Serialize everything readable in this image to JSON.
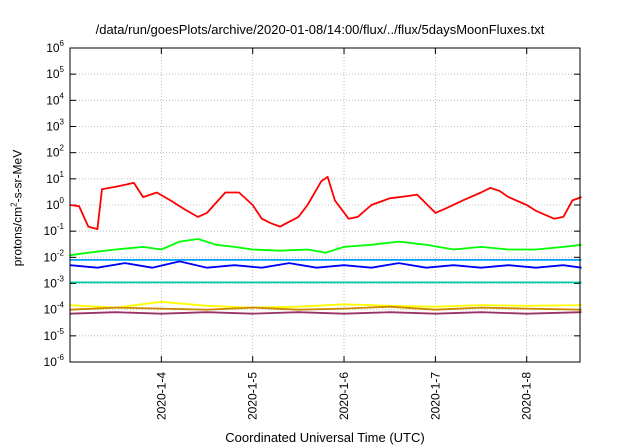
{
  "chart_data": {
    "type": "line",
    "title": "/data/run/goesPlots/archive/2020-01-08/14:00/flux/../flux/5daysMoonFluxes.txt",
    "xlabel": "Coordinated Universal Time (UTC)",
    "ylabel_base": "protons/cm",
    "ylabel_sup": "2",
    "ylabel_rest": "-s-sr-MeV",
    "yscale": "log",
    "ylim": [
      1e-06,
      1000000.0
    ],
    "y_tick_exponents": [
      -6,
      -5,
      -4,
      -3,
      -2,
      -1,
      0,
      1,
      2,
      3,
      4,
      5,
      6
    ],
    "y_tick_base": "10",
    "xlim_days": [
      "2020-01-03 00:00",
      "2020-01-08 14:00"
    ],
    "x_tick_labels": [
      "2020-1-4",
      "2020-1-5",
      "2020-1-6",
      "2020-1-7",
      "2020-1-8"
    ],
    "x_tick_days": [
      4,
      5,
      6,
      7,
      8
    ],
    "grid": true,
    "legend": "none",
    "colors": [
      "#ff0000",
      "#00ff00",
      "#00a0ff",
      "#0000ff",
      "#00c8a0",
      "#ffff00",
      "#cc8800",
      "#993366"
    ],
    "series": [
      {
        "color": "#ff0000",
        "points": [
          [
            3.0,
            1.0
          ],
          [
            3.1,
            0.9
          ],
          [
            3.2,
            0.15
          ],
          [
            3.3,
            0.12
          ],
          [
            3.35,
            4.0
          ],
          [
            3.5,
            5.0
          ],
          [
            3.7,
            7.0
          ],
          [
            3.8,
            2.0
          ],
          [
            3.95,
            3.0
          ],
          [
            4.1,
            1.5
          ],
          [
            4.25,
            0.7
          ],
          [
            4.4,
            0.35
          ],
          [
            4.5,
            0.5
          ],
          [
            4.7,
            3.0
          ],
          [
            4.85,
            3.0
          ],
          [
            5.0,
            1.0
          ],
          [
            5.1,
            0.3
          ],
          [
            5.2,
            0.2
          ],
          [
            5.3,
            0.15
          ],
          [
            5.5,
            0.35
          ],
          [
            5.6,
            1.0
          ],
          [
            5.75,
            8.0
          ],
          [
            5.82,
            12.0
          ],
          [
            5.9,
            1.5
          ],
          [
            6.05,
            0.3
          ],
          [
            6.15,
            0.35
          ],
          [
            6.3,
            1.0
          ],
          [
            6.5,
            1.8
          ],
          [
            6.7,
            2.2
          ],
          [
            6.8,
            2.5
          ],
          [
            7.0,
            0.5
          ],
          [
            7.1,
            0.7
          ],
          [
            7.3,
            1.5
          ],
          [
            7.5,
            3.0
          ],
          [
            7.6,
            4.5
          ],
          [
            7.7,
            3.5
          ],
          [
            7.8,
            2.0
          ],
          [
            8.0,
            1.0
          ],
          [
            8.1,
            0.6
          ],
          [
            8.3,
            0.3
          ],
          [
            8.4,
            0.35
          ],
          [
            8.5,
            1.5
          ],
          [
            8.6,
            2.0
          ]
        ]
      },
      {
        "color": "#00ff00",
        "points": [
          [
            3.0,
            0.012
          ],
          [
            3.2,
            0.015
          ],
          [
            3.5,
            0.02
          ],
          [
            3.8,
            0.025
          ],
          [
            4.0,
            0.02
          ],
          [
            4.2,
            0.04
          ],
          [
            4.4,
            0.05
          ],
          [
            4.6,
            0.03
          ],
          [
            4.8,
            0.025
          ],
          [
            5.0,
            0.02
          ],
          [
            5.3,
            0.018
          ],
          [
            5.6,
            0.02
          ],
          [
            5.8,
            0.015
          ],
          [
            6.0,
            0.025
          ],
          [
            6.3,
            0.03
          ],
          [
            6.6,
            0.04
          ],
          [
            6.9,
            0.03
          ],
          [
            7.2,
            0.02
          ],
          [
            7.5,
            0.025
          ],
          [
            7.8,
            0.02
          ],
          [
            8.1,
            0.02
          ],
          [
            8.4,
            0.025
          ],
          [
            8.6,
            0.03
          ]
        ]
      },
      {
        "color": "#00a0ff",
        "points": [
          [
            3.0,
            0.008
          ],
          [
            8.6,
            0.008
          ]
        ]
      },
      {
        "color": "#0000ff",
        "points": [
          [
            3.0,
            0.005
          ],
          [
            3.3,
            0.004
          ],
          [
            3.6,
            0.006
          ],
          [
            3.9,
            0.004
          ],
          [
            4.2,
            0.007
          ],
          [
            4.5,
            0.004
          ],
          [
            4.8,
            0.005
          ],
          [
            5.1,
            0.004
          ],
          [
            5.4,
            0.006
          ],
          [
            5.7,
            0.004
          ],
          [
            6.0,
            0.005
          ],
          [
            6.3,
            0.004
          ],
          [
            6.6,
            0.006
          ],
          [
            6.9,
            0.004
          ],
          [
            7.2,
            0.005
          ],
          [
            7.5,
            0.004
          ],
          [
            7.8,
            0.005
          ],
          [
            8.1,
            0.004
          ],
          [
            8.4,
            0.005
          ],
          [
            8.6,
            0.004
          ]
        ]
      },
      {
        "color": "#00c8a0",
        "points": [
          [
            3.0,
            0.0011
          ],
          [
            8.6,
            0.0011
          ]
        ]
      },
      {
        "color": "#ffff00",
        "points": [
          [
            3.0,
            0.00015
          ],
          [
            3.5,
            0.00012
          ],
          [
            4.0,
            0.0002
          ],
          [
            4.5,
            0.00014
          ],
          [
            5.0,
            0.00012
          ],
          [
            5.5,
            0.00013
          ],
          [
            6.0,
            0.00016
          ],
          [
            6.5,
            0.00014
          ],
          [
            7.0,
            0.00013
          ],
          [
            7.5,
            0.00015
          ],
          [
            8.0,
            0.00014
          ],
          [
            8.6,
            0.00015
          ]
        ]
      },
      {
        "color": "#cc8800",
        "points": [
          [
            3.0,
            0.0001
          ],
          [
            3.5,
            0.00012
          ],
          [
            4.0,
            0.00011
          ],
          [
            4.5,
            0.0001
          ],
          [
            5.0,
            0.00012
          ],
          [
            5.5,
            0.0001
          ],
          [
            6.0,
            0.00011
          ],
          [
            6.5,
            0.00013
          ],
          [
            7.0,
            0.0001
          ],
          [
            7.5,
            0.00012
          ],
          [
            8.0,
            0.00011
          ],
          [
            8.6,
            0.0001
          ]
        ]
      },
      {
        "color": "#993366",
        "points": [
          [
            3.0,
            7e-05
          ],
          [
            3.5,
            8e-05
          ],
          [
            4.0,
            7e-05
          ],
          [
            4.5,
            8e-05
          ],
          [
            5.0,
            7e-05
          ],
          [
            5.5,
            8e-05
          ],
          [
            6.0,
            7e-05
          ],
          [
            6.5,
            8e-05
          ],
          [
            7.0,
            7e-05
          ],
          [
            7.5,
            8e-05
          ],
          [
            8.0,
            7e-05
          ],
          [
            8.6,
            8e-05
          ]
        ]
      }
    ]
  }
}
